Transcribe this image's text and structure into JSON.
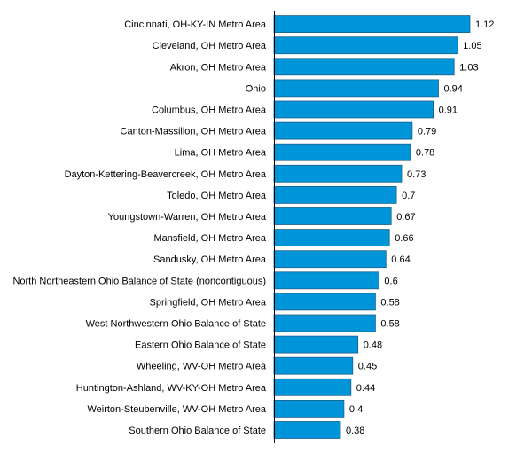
{
  "chart_data": {
    "type": "bar",
    "orientation": "horizontal",
    "title": "",
    "xlabel": "",
    "ylabel": "",
    "bar_color": "#0095d8",
    "bar_edge_color": "#1f5f87",
    "grid": false,
    "legend": "none",
    "xlim": [
      0,
      1.12
    ],
    "categories": [
      "Cincinnati, OH-KY-IN Metro Area",
      "Cleveland, OH Metro Area",
      "Akron, OH Metro Area",
      "Ohio",
      "Columbus, OH Metro Area",
      "Canton-Massillon, OH Metro Area",
      "Lima, OH Metro Area",
      "Dayton-Kettering-Beavercreek, OH Metro Area",
      "Toledo, OH Metro Area",
      "Youngstown-Warren, OH Metro Area",
      "Mansfield, OH Metro Area",
      "Sandusky, OH Metro Area",
      "North Northeastern Ohio Balance of State (noncontiguous)",
      "Springfield, OH Metro Area",
      "West Northwestern Ohio Balance of State",
      "Eastern Ohio Balance of State",
      "Wheeling, WV-OH Metro Area",
      "Huntington-Ashland, WV-KY-OH Metro Area",
      "Weirton-Steubenville, WV-OH Metro Area",
      "Southern Ohio Balance of State"
    ],
    "values": [
      1.12,
      1.05,
      1.03,
      0.94,
      0.91,
      0.79,
      0.78,
      0.73,
      0.7,
      0.67,
      0.66,
      0.64,
      0.6,
      0.58,
      0.58,
      0.48,
      0.45,
      0.44,
      0.4,
      0.38
    ],
    "value_labels": [
      "1.12",
      "1.05",
      "1.03",
      "0.94",
      "0.91",
      "0.79",
      "0.78",
      "0.73",
      "0.7",
      "0.67",
      "0.66",
      "0.64",
      "0.6",
      "0.58",
      "0.58",
      "0.48",
      "0.45",
      "0.44",
      "0.4",
      "0.38"
    ]
  }
}
